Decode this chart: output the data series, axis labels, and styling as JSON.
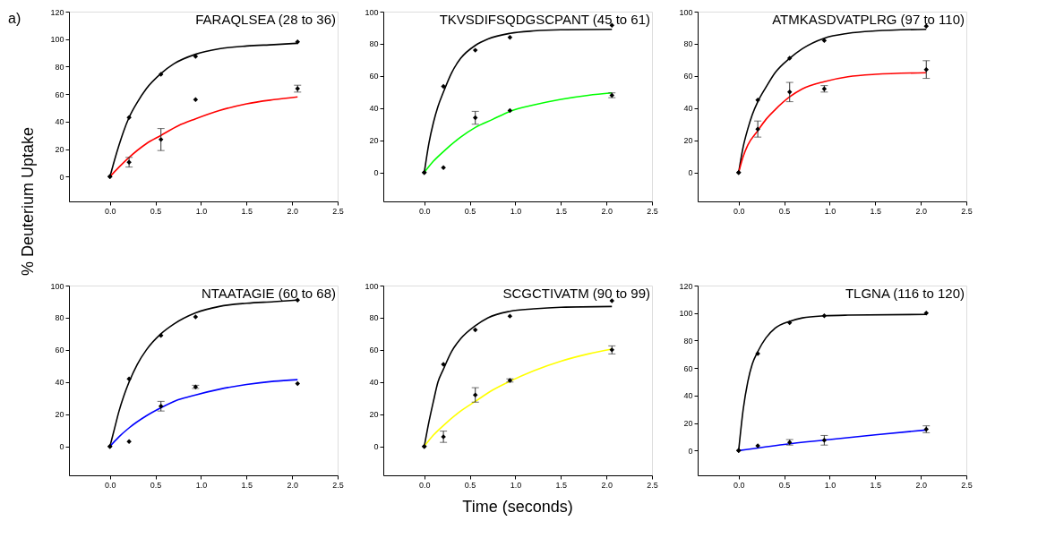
{
  "chart_data": [
    {
      "type": "line",
      "title": "FARAQLSEA (28 to 36)",
      "ylabel": "% Deuterium Uptake",
      "annotations": [
        "a)"
      ],
      "xlim": [
        -0.45,
        2.5
      ],
      "ylim": [
        -18,
        120
      ],
      "xticks": [
        {
          "value": 0,
          "label": "0.0"
        },
        0.5,
        {
          "value": 1,
          "label": "1.0"
        },
        1.5,
        {
          "value": 2,
          "label": "2.0"
        },
        2.5
      ],
      "yticks": [
        0,
        20,
        40,
        60,
        80,
        100,
        120
      ],
      "grid": false,
      "legend": false,
      "series": [
        {
          "type": "line",
          "color": "#000000",
          "x": [
            0,
            0.05,
            0.1,
            0.15,
            0.21,
            0.3,
            0.4,
            0.56,
            0.7,
            0.94,
            1.2,
            1.5,
            1.8,
            2.06
          ],
          "values": [
            0,
            12,
            23,
            33,
            43,
            54,
            64,
            75,
            82,
            89,
            93,
            95,
            96,
            97
          ]
        },
        {
          "type": "line",
          "color": "#ff0000",
          "x": [
            0,
            0.1,
            0.21,
            0.4,
            0.56,
            0.75,
            0.94,
            1.2,
            1.5,
            1.8,
            2.06
          ],
          "values": [
            0,
            7,
            14,
            24,
            30,
            37,
            42,
            48,
            53,
            56,
            58
          ]
        },
        {
          "type": "scatter",
          "marker": "diamond",
          "color": "#000000",
          "x": [
            0,
            0.21,
            0.56,
            0.94,
            2.06
          ],
          "values": [
            0,
            43,
            74.5,
            87.5,
            98
          ]
        },
        {
          "type": "scatter",
          "marker": "diamond",
          "color": "#000000",
          "x": [
            0,
            0.21,
            0.56,
            0.94,
            2.06
          ],
          "values": [
            0,
            10.5,
            27,
            56,
            64
          ],
          "errors": [
            null,
            3.5,
            8,
            null,
            2.5
          ]
        }
      ]
    },
    {
      "type": "line",
      "title": "TKVSDIFSQDGSCPANT (45 to 61)",
      "xlim": [
        -0.45,
        2.5
      ],
      "ylim": [
        -18,
        100
      ],
      "xticks": [
        {
          "value": 0,
          "label": "0.0"
        },
        0.5,
        {
          "value": 1,
          "label": "1.0"
        },
        1.5,
        {
          "value": 2,
          "label": "2.0"
        },
        2.5
      ],
      "yticks": [
        0,
        20,
        40,
        60,
        80,
        100
      ],
      "grid": false,
      "legend": false,
      "series": [
        {
          "type": "line",
          "color": "#000000",
          "x": [
            0,
            0.05,
            0.1,
            0.15,
            0.21,
            0.3,
            0.4,
            0.56,
            0.7,
            0.94,
            1.2,
            1.5,
            2.06
          ],
          "values": [
            0,
            18,
            31,
            41,
            50,
            62,
            71,
            79,
            83,
            86.5,
            88,
            88.7,
            89
          ]
        },
        {
          "type": "line",
          "color": "#00ff00",
          "x": [
            0,
            0.1,
            0.21,
            0.4,
            0.56,
            0.75,
            0.94,
            1.2,
            1.5,
            1.8,
            2.06
          ],
          "values": [
            0,
            7,
            13,
            22,
            28,
            33,
            38,
            42,
            45.5,
            48,
            49.5
          ]
        },
        {
          "type": "scatter",
          "marker": "diamond",
          "color": "#000000",
          "x": [
            0,
            0.21,
            0.56,
            0.94,
            2.06
          ],
          "values": [
            0,
            53.5,
            76,
            84,
            91.5
          ]
        },
        {
          "type": "scatter",
          "marker": "diamond",
          "color": "#000000",
          "x": [
            0,
            0.21,
            0.56,
            0.94,
            2.06
          ],
          "values": [
            0,
            3,
            34,
            38.5,
            48
          ],
          "errors": [
            null,
            null,
            4,
            null,
            1.5
          ]
        }
      ]
    },
    {
      "type": "line",
      "title": "ATMKASDVATPLRG (97 to 110)",
      "xlim": [
        -0.45,
        2.5
      ],
      "ylim": [
        -18,
        100
      ],
      "xticks": [
        {
          "value": 0,
          "label": "0.0"
        },
        0.5,
        {
          "value": 1,
          "label": "1.0"
        },
        1.5,
        {
          "value": 2,
          "label": "2.0"
        },
        2.5
      ],
      "yticks": [
        0,
        20,
        40,
        60,
        80,
        100
      ],
      "grid": false,
      "legend": false,
      "series": [
        {
          "type": "line",
          "color": "#000000",
          "x": [
            0,
            0.05,
            0.1,
            0.15,
            0.21,
            0.3,
            0.4,
            0.56,
            0.7,
            0.94,
            1.2,
            1.5,
            2.06
          ],
          "values": [
            0,
            16,
            27,
            36,
            44,
            53,
            62,
            71,
            77,
            83.5,
            86.5,
            88,
            89
          ]
        },
        {
          "type": "line",
          "color": "#ff0000",
          "x": [
            0,
            0.05,
            0.1,
            0.21,
            0.3,
            0.4,
            0.56,
            0.7,
            0.94,
            1.2,
            1.5,
            2.06
          ],
          "values": [
            0,
            10,
            17,
            26,
            33,
            39,
            47,
            52,
            56.5,
            59.5,
            61,
            62
          ]
        },
        {
          "type": "scatter",
          "marker": "diamond",
          "color": "#000000",
          "x": [
            0,
            0.21,
            0.56,
            0.94,
            2.06
          ],
          "values": [
            0,
            45,
            71,
            82,
            91
          ]
        },
        {
          "type": "scatter",
          "marker": "diamond",
          "color": "#000000",
          "x": [
            0,
            0.21,
            0.56,
            0.94,
            2.06
          ],
          "values": [
            0,
            27,
            50,
            52,
            64
          ],
          "errors": [
            null,
            5,
            6,
            2,
            5.5
          ]
        }
      ]
    },
    {
      "type": "line",
      "title": "NTAATAGIE (60 to 68)",
      "xlim": [
        -0.45,
        2.5
      ],
      "ylim": [
        -18,
        100
      ],
      "xticks": [
        {
          "value": 0,
          "label": "0.0"
        },
        0.5,
        {
          "value": 1,
          "label": "1.0"
        },
        1.5,
        {
          "value": 2,
          "label": "2.0"
        },
        2.5
      ],
      "yticks": [
        0,
        20,
        40,
        60,
        80,
        100
      ],
      "grid": false,
      "legend": false,
      "series": [
        {
          "type": "line",
          "color": "#000000",
          "x": [
            0,
            0.05,
            0.1,
            0.15,
            0.21,
            0.3,
            0.4,
            0.56,
            0.7,
            0.94,
            1.2,
            1.5,
            1.8,
            2.06
          ],
          "values": [
            0,
            11,
            22,
            31,
            40,
            51,
            60,
            70,
            76,
            83,
            87,
            89,
            90,
            91
          ]
        },
        {
          "type": "line",
          "color": "#0000ff",
          "x": [
            0,
            0.1,
            0.21,
            0.4,
            0.56,
            0.75,
            0.94,
            1.2,
            1.5,
            1.8,
            2.06
          ],
          "values": [
            0,
            6,
            11.5,
            19,
            24,
            29,
            32,
            35.5,
            38.5,
            40.5,
            41.5
          ]
        },
        {
          "type": "scatter",
          "marker": "diamond",
          "color": "#000000",
          "x": [
            0,
            0.21,
            0.56,
            0.94,
            2.06
          ],
          "values": [
            0,
            42,
            69,
            80.5,
            91
          ]
        },
        {
          "type": "scatter",
          "marker": "diamond",
          "color": "#000000",
          "x": [
            0,
            0.21,
            0.56,
            0.94,
            2.06
          ],
          "values": [
            0,
            3,
            25,
            37,
            39
          ],
          "errors": [
            null,
            null,
            3,
            1,
            null
          ]
        }
      ]
    },
    {
      "type": "line",
      "title": "SCGCTIVATM (90 to 99)",
      "xlabel": "Time (seconds)",
      "xlim": [
        -0.45,
        2.5
      ],
      "ylim": [
        -18,
        100
      ],
      "xticks": [
        {
          "value": 0,
          "label": "0.0"
        },
        0.5,
        {
          "value": 1,
          "label": "1.0"
        },
        1.5,
        {
          "value": 2,
          "label": "2.0"
        },
        2.5
      ],
      "yticks": [
        0,
        20,
        40,
        60,
        80,
        100
      ],
      "grid": false,
      "legend": false,
      "series": [
        {
          "type": "line",
          "color": "#000000",
          "x": [
            0,
            0.05,
            0.1,
            0.15,
            0.21,
            0.3,
            0.4,
            0.56,
            0.7,
            0.94,
            1.2,
            1.5,
            2.06
          ],
          "values": [
            0,
            15,
            28,
            40,
            48,
            59,
            67,
            75,
            80,
            84,
            85.5,
            86.5,
            87
          ]
        },
        {
          "type": "line",
          "color": "#ffff00",
          "x": [
            0,
            0.1,
            0.21,
            0.4,
            0.56,
            0.75,
            0.94,
            1.2,
            1.5,
            1.8,
            2.06
          ],
          "values": [
            0,
            7,
            13,
            22,
            28,
            35,
            40.5,
            47,
            53,
            57.5,
            60.5
          ]
        },
        {
          "type": "scatter",
          "marker": "diamond",
          "color": "#000000",
          "x": [
            0,
            0.21,
            0.56,
            0.94,
            2.06
          ],
          "values": [
            0,
            51,
            72.5,
            81,
            90.5
          ]
        },
        {
          "type": "scatter",
          "marker": "diamond",
          "color": "#000000",
          "x": [
            0,
            0.21,
            0.56,
            0.94,
            2.06
          ],
          "values": [
            0,
            6,
            32,
            41,
            60
          ],
          "errors": [
            null,
            3.5,
            4.5,
            1,
            2.5
          ]
        }
      ]
    },
    {
      "type": "line",
      "title": "TLGNA (116 to 120)",
      "xlim": [
        -0.45,
        2.5
      ],
      "ylim": [
        -18,
        120
      ],
      "xticks": [
        {
          "value": 0,
          "label": "0.0"
        },
        0.5,
        {
          "value": 1,
          "label": "1.0"
        },
        1.5,
        {
          "value": 2,
          "label": "2.0"
        },
        2.5
      ],
      "yticks": [
        0,
        20,
        40,
        60,
        80,
        100,
        120
      ],
      "grid": false,
      "legend": false,
      "series": [
        {
          "type": "line",
          "color": "#000000",
          "x": [
            0,
            0.05,
            0.1,
            0.15,
            0.21,
            0.3,
            0.4,
            0.56,
            0.7,
            0.94,
            1.2,
            2.06
          ],
          "values": [
            0,
            30,
            50,
            63,
            72,
            82,
            89,
            94,
            96.5,
            98,
            98.5,
            99
          ]
        },
        {
          "type": "line",
          "color": "#0000ff",
          "x": [
            0,
            0.5,
            1.0,
            1.5,
            2.06
          ],
          "values": [
            0,
            4.5,
            8,
            11.5,
            15
          ]
        },
        {
          "type": "scatter",
          "marker": "diamond",
          "color": "#000000",
          "x": [
            0,
            0.21,
            0.56,
            0.94,
            2.06
          ],
          "values": [
            0,
            70.5,
            93,
            98,
            100
          ]
        },
        {
          "type": "scatter",
          "marker": "diamond",
          "color": "#000000",
          "x": [
            0,
            0.21,
            0.56,
            0.94,
            2.06
          ],
          "values": [
            0,
            3.5,
            6,
            7.5,
            15.5
          ],
          "errors": [
            null,
            null,
            2,
            3.5,
            2.5
          ]
        }
      ]
    }
  ]
}
